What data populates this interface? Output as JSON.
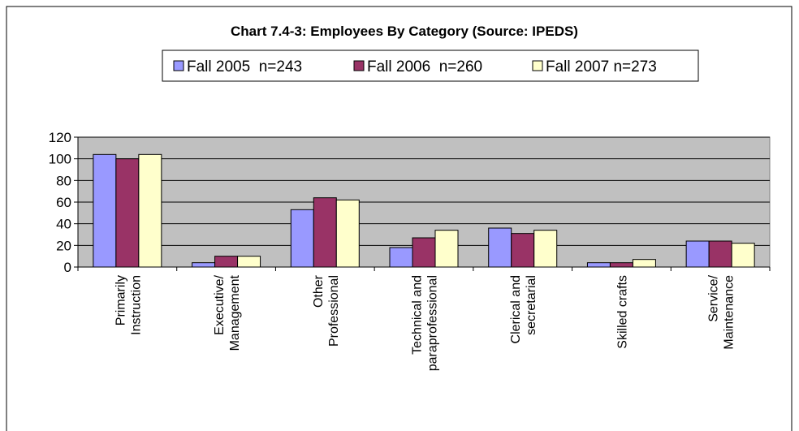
{
  "chart_data": {
    "type": "bar",
    "title": "Chart 7.4-3: Employees By Category (Source: IPEDS)",
    "categories": [
      [
        "Primarily",
        "Instruction"
      ],
      [
        "Executive/",
        "Management"
      ],
      [
        "Other",
        "Professional"
      ],
      [
        "Technical and",
        "paraprofessional"
      ],
      [
        "Clerical and",
        "secretarial"
      ],
      [
        "Skilled crafts"
      ],
      [
        "Service/",
        "Maintenance"
      ]
    ],
    "series": [
      {
        "name": "Fall 2005  n=243",
        "color": "#9999ff",
        "values": [
          104,
          4,
          53,
          18,
          36,
          4,
          24
        ]
      },
      {
        "name": "Fall 2006  n=260",
        "color": "#993366",
        "values": [
          100,
          10,
          64,
          27,
          31,
          4,
          24
        ]
      },
      {
        "name": "Fall 2007 n=273",
        "color": "#ffffcc",
        "values": [
          104,
          10,
          62,
          34,
          34,
          7,
          22
        ]
      }
    ],
    "ylim": [
      0,
      120
    ],
    "yticks": [
      0,
      20,
      40,
      60,
      80,
      100,
      120
    ],
    "grid": true,
    "legend": "top"
  }
}
